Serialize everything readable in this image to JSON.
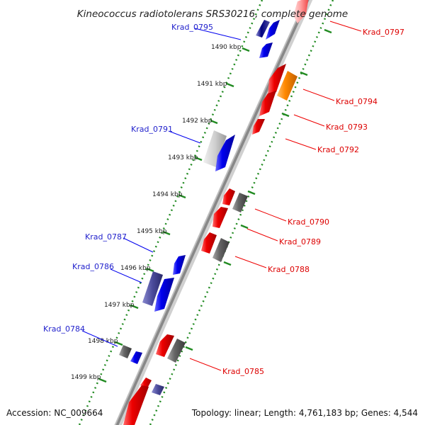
{
  "title": "Kineococcus radiotolerans SRS30216, complete genome",
  "accession": "Accession: NC_009664",
  "summary": "Topology: linear; Length: 4,761,183 bp; Genes: 4,544",
  "ticks": [
    "1490 kbp",
    "1491 kbp",
    "1492 kbp",
    "1493 kbp",
    "1494 kbp",
    "1495 kbp",
    "1496 kbp",
    "1497 kbp",
    "1498 kbp",
    "1499 kbp"
  ],
  "gene_labels": {
    "krad_0795": "Krad_0795",
    "krad_0791": "Krad_0791",
    "krad_0787": "Krad_0787",
    "krad_0786": "Krad_0786",
    "krad_0784": "Krad_0784",
    "krad_0797": "Krad_0797",
    "krad_0794": "Krad_0794",
    "krad_0793": "Krad_0793",
    "krad_0792": "Krad_0792",
    "krad_0790": "Krad_0790",
    "krad_0789": "Krad_0789",
    "krad_0788": "Krad_0788",
    "krad_0785": "Krad_0785"
  },
  "colors": {
    "forward": "#0000ee",
    "reverse": "#ee0000",
    "highlight": "#ff8800",
    "grey": "#666666",
    "navy": "#000080",
    "axis": "#888888",
    "dotted": "#228B22"
  }
}
